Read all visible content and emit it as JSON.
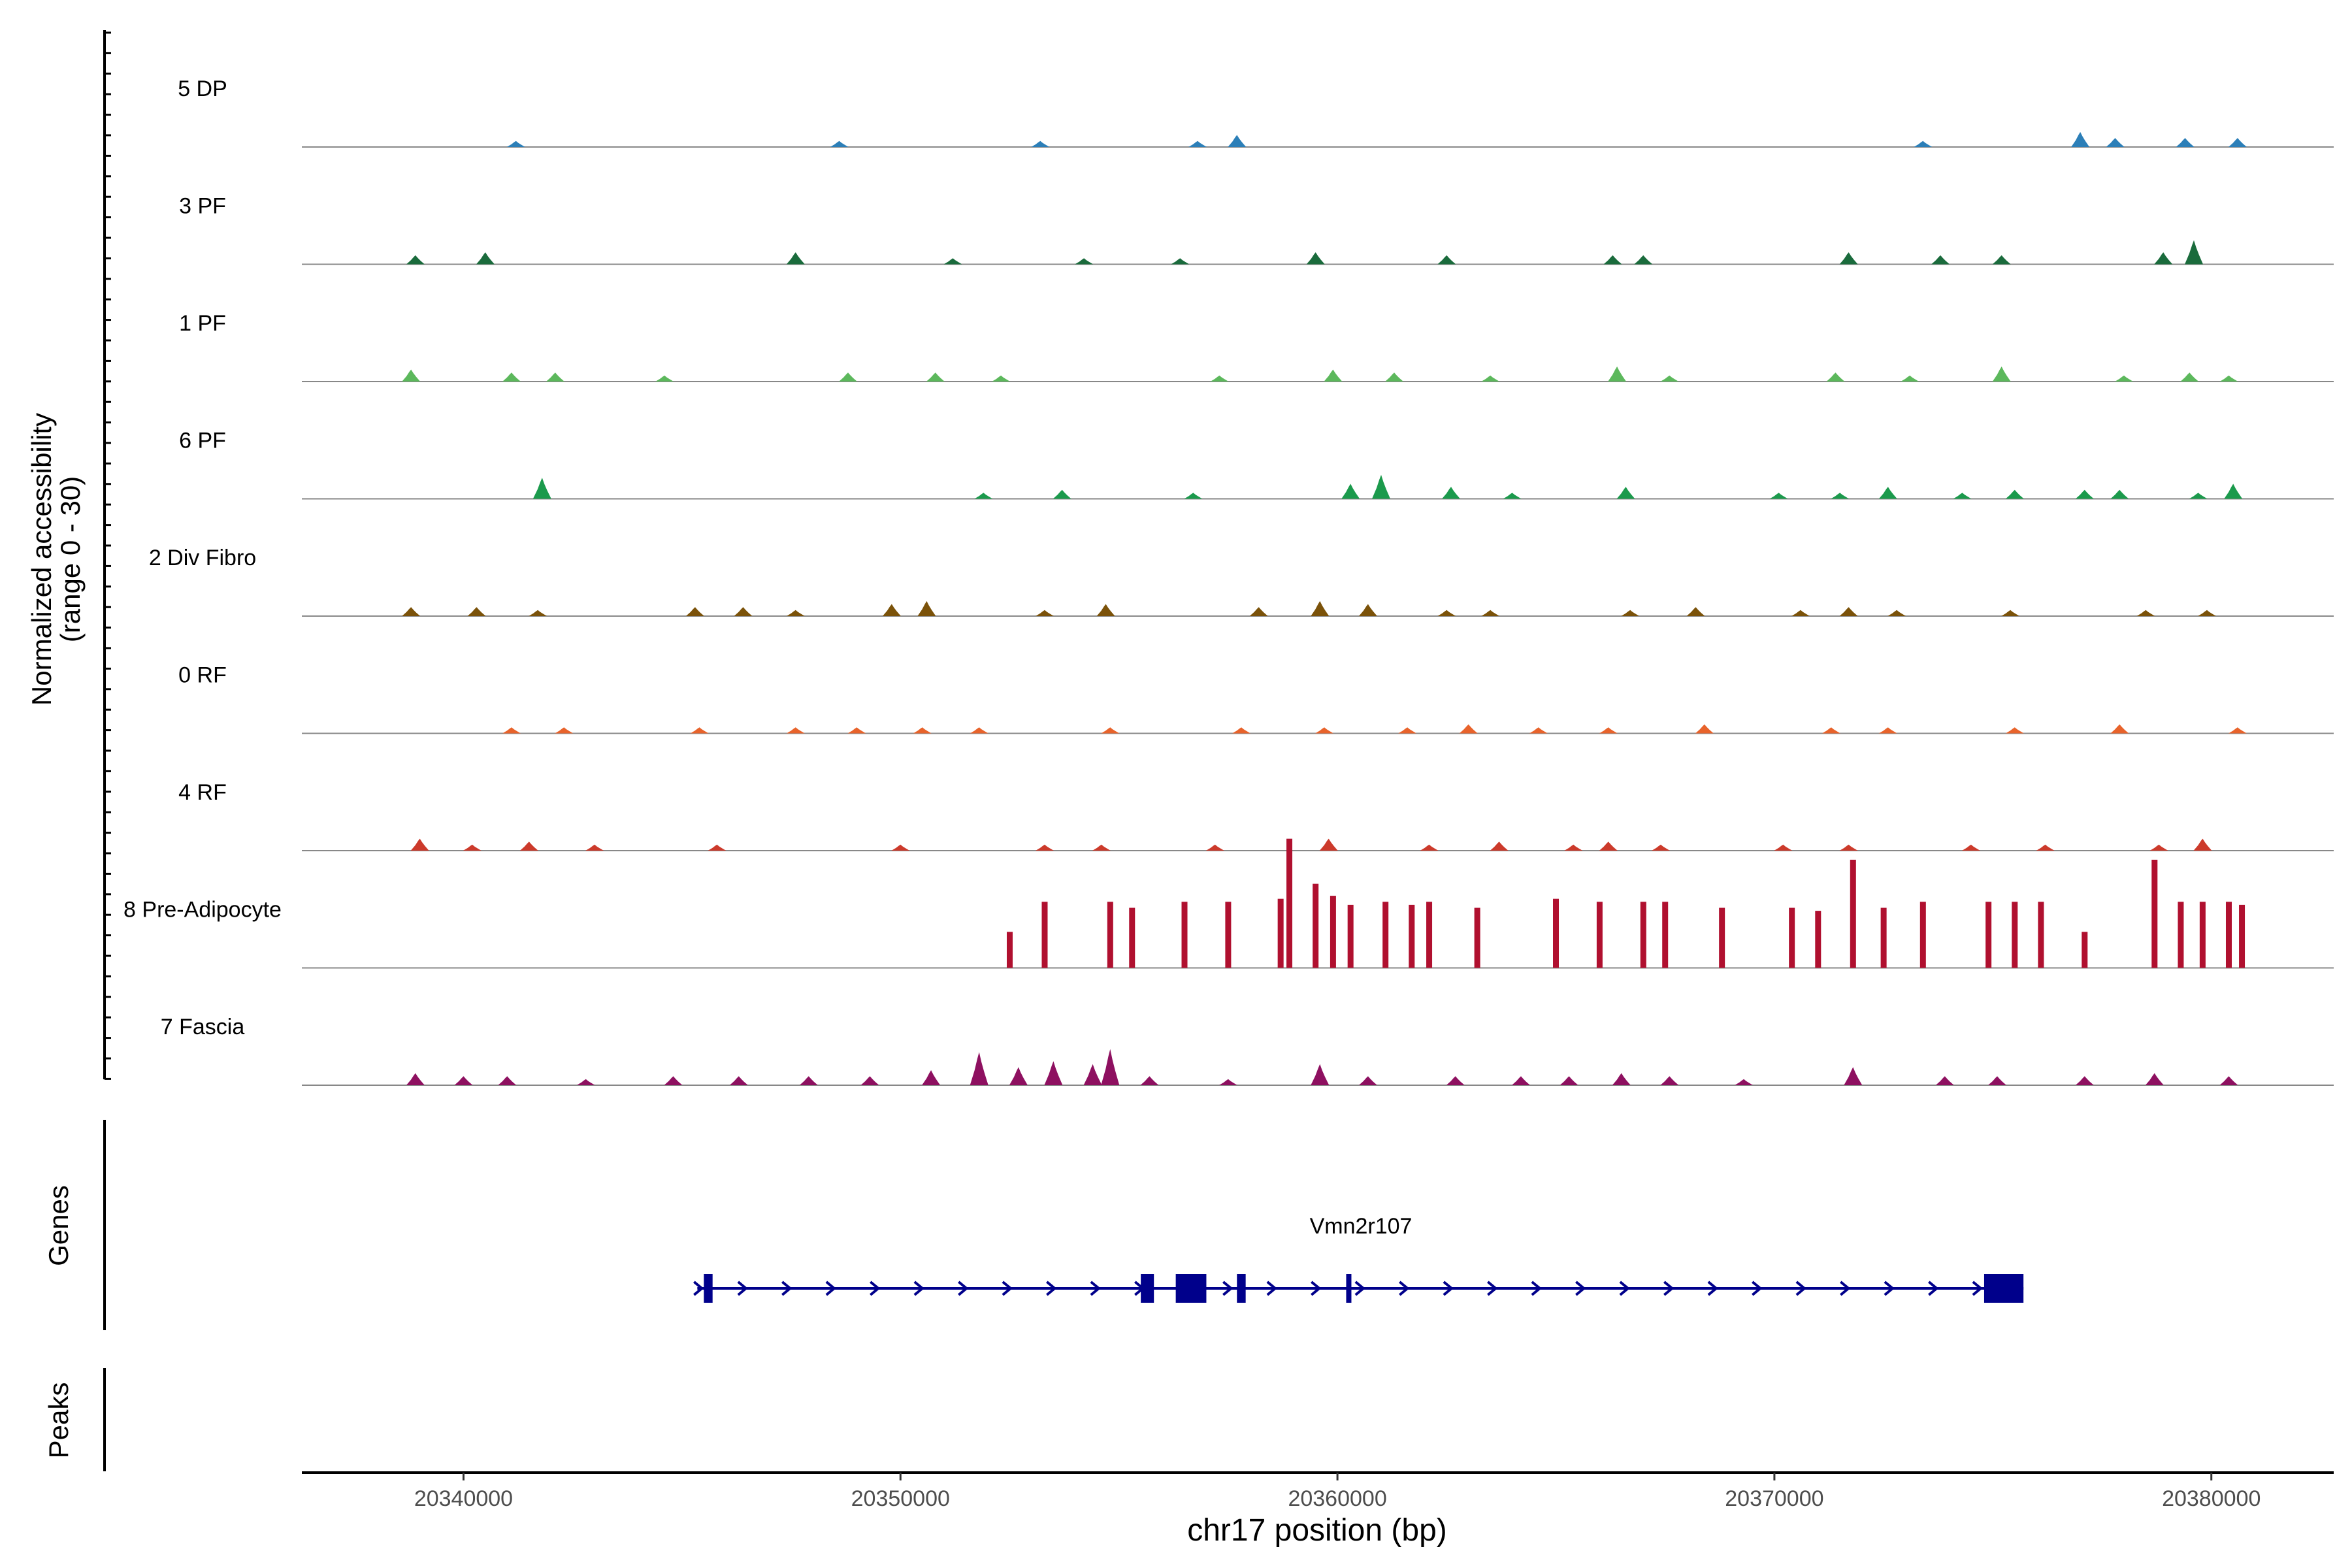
{
  "chart_data": {
    "type": "area",
    "title": "",
    "ylabel_line1": "Normalized accessibility",
    "ylabel_line2": "(range 0 - 30)",
    "xlabel": "chr17 position (bp)",
    "xlim": [
      20336300,
      20382800
    ],
    "ylim": [
      0,
      30
    ],
    "x_ticks": [
      20340000,
      20350000,
      20360000,
      20370000,
      20380000
    ],
    "x_tick_labels": [
      "20340000",
      "20350000",
      "20360000",
      "20370000",
      "20380000"
    ],
    "series": [
      {
        "name": "5 DP",
        "color": "#2c7fb8",
        "peaks": [
          [
            20341200,
            2
          ],
          [
            20348600,
            2
          ],
          [
            20353200,
            2
          ],
          [
            20356800,
            2
          ],
          [
            20357700,
            4
          ],
          [
            20373400,
            2
          ],
          [
            20377000,
            5
          ],
          [
            20377800,
            3
          ],
          [
            20379400,
            3
          ],
          [
            20380600,
            3
          ]
        ]
      },
      {
        "name": "3 PF",
        "color": "#1a6b3c",
        "peaks": [
          [
            20338900,
            3
          ],
          [
            20340500,
            4
          ],
          [
            20347600,
            4
          ],
          [
            20351200,
            2
          ],
          [
            20354200,
            2
          ],
          [
            20356400,
            2
          ],
          [
            20359500,
            4
          ],
          [
            20362500,
            3
          ],
          [
            20366300,
            3
          ],
          [
            20367000,
            3
          ],
          [
            20371700,
            4
          ],
          [
            20373800,
            3
          ],
          [
            20375200,
            3
          ],
          [
            20378900,
            4
          ],
          [
            20379600,
            8
          ]
        ]
      },
      {
        "name": "1 PF",
        "color": "#5cb85c",
        "peaks": [
          [
            20338800,
            4
          ],
          [
            20341100,
            3
          ],
          [
            20342100,
            3
          ],
          [
            20344600,
            2
          ],
          [
            20348800,
            3
          ],
          [
            20350800,
            3
          ],
          [
            20352300,
            2
          ],
          [
            20357300,
            2
          ],
          [
            20359900,
            4
          ],
          [
            20361300,
            3
          ],
          [
            20363500,
            2
          ],
          [
            20366400,
            5
          ],
          [
            20367600,
            2
          ],
          [
            20371400,
            3
          ],
          [
            20373100,
            2
          ],
          [
            20375200,
            5
          ],
          [
            20378000,
            2
          ],
          [
            20379500,
            3
          ],
          [
            20380400,
            2
          ]
        ]
      },
      {
        "name": "6 PF",
        "color": "#1b9a4c",
        "peaks": [
          [
            20341800,
            7
          ],
          [
            20351900,
            2
          ],
          [
            20353700,
            3
          ],
          [
            20356700,
            2
          ],
          [
            20360300,
            5
          ],
          [
            20361000,
            8
          ],
          [
            20362600,
            4
          ],
          [
            20364000,
            2
          ],
          [
            20366600,
            4
          ],
          [
            20370100,
            2
          ],
          [
            20371500,
            2
          ],
          [
            20372600,
            4
          ],
          [
            20374300,
            2
          ],
          [
            20375500,
            3
          ],
          [
            20377100,
            3
          ],
          [
            20377900,
            3
          ],
          [
            20379700,
            2
          ],
          [
            20380500,
            5
          ]
        ]
      },
      {
        "name": "2 Div Fibro",
        "color": "#7b5209",
        "peaks": [
          [
            20338800,
            3
          ],
          [
            20340300,
            3
          ],
          [
            20341700,
            2
          ],
          [
            20345300,
            3
          ],
          [
            20346400,
            3
          ],
          [
            20347600,
            2
          ],
          [
            20349800,
            4
          ],
          [
            20350600,
            5
          ],
          [
            20353300,
            2
          ],
          [
            20354700,
            4
          ],
          [
            20358200,
            3
          ],
          [
            20359600,
            5
          ],
          [
            20360700,
            4
          ],
          [
            20362500,
            2
          ],
          [
            20363500,
            2
          ],
          [
            20366700,
            2
          ],
          [
            20368200,
            3
          ],
          [
            20370600,
            2
          ],
          [
            20371700,
            3
          ],
          [
            20372800,
            2
          ],
          [
            20375400,
            2
          ],
          [
            20378500,
            2
          ],
          [
            20379900,
            2
          ]
        ]
      },
      {
        "name": "0 RF",
        "color": "#e8632b",
        "peaks": [
          [
            20341100,
            2
          ],
          [
            20342300,
            2
          ],
          [
            20345400,
            2
          ],
          [
            20347600,
            2
          ],
          [
            20349000,
            2
          ],
          [
            20350500,
            2
          ],
          [
            20351800,
            2
          ],
          [
            20354800,
            2
          ],
          [
            20357800,
            2
          ],
          [
            20359700,
            2
          ],
          [
            20361600,
            2
          ],
          [
            20363000,
            3
          ],
          [
            20364600,
            2
          ],
          [
            20366200,
            2
          ],
          [
            20368400,
            3
          ],
          [
            20371300,
            2
          ],
          [
            20372600,
            2
          ],
          [
            20375500,
            2
          ],
          [
            20377900,
            3
          ],
          [
            20380600,
            2
          ]
        ]
      },
      {
        "name": "4 RF",
        "color": "#cc3a2b",
        "peaks": [
          [
            20339000,
            4
          ],
          [
            20340200,
            2
          ],
          [
            20341500,
            3
          ],
          [
            20343000,
            2
          ],
          [
            20345800,
            2
          ],
          [
            20350000,
            2
          ],
          [
            20353300,
            2
          ],
          [
            20354600,
            2
          ],
          [
            20357200,
            2
          ],
          [
            20359800,
            4
          ],
          [
            20362100,
            2
          ],
          [
            20363700,
            3
          ],
          [
            20365400,
            2
          ],
          [
            20366200,
            3
          ],
          [
            20367400,
            2
          ],
          [
            20370200,
            2
          ],
          [
            20371700,
            2
          ],
          [
            20374500,
            2
          ],
          [
            20376200,
            2
          ],
          [
            20378800,
            2
          ],
          [
            20379800,
            4
          ]
        ]
      },
      {
        "name": "8 Pre-Adipocyte",
        "color": "#b0102f",
        "peaks": [
          [
            20352500,
            12
          ],
          [
            20353300,
            22
          ],
          [
            20354800,
            22
          ],
          [
            20355300,
            20
          ],
          [
            20356500,
            22
          ],
          [
            20357500,
            22
          ],
          [
            20358700,
            23
          ],
          [
            20358900,
            43
          ],
          [
            20359500,
            28
          ],
          [
            20359900,
            24
          ],
          [
            20360300,
            21
          ],
          [
            20361100,
            22
          ],
          [
            20361700,
            21
          ],
          [
            20362100,
            22
          ],
          [
            20363200,
            20
          ],
          [
            20365000,
            23
          ],
          [
            20366000,
            22
          ],
          [
            20367000,
            22
          ],
          [
            20367500,
            22
          ],
          [
            20368800,
            20
          ],
          [
            20370400,
            20
          ],
          [
            20371000,
            19
          ],
          [
            20371800,
            36
          ],
          [
            20372500,
            20
          ],
          [
            20373400,
            22
          ],
          [
            20374900,
            22
          ],
          [
            20375500,
            22
          ],
          [
            20376100,
            22
          ],
          [
            20377100,
            12
          ],
          [
            20378700,
            36
          ],
          [
            20379300,
            22
          ],
          [
            20379800,
            22
          ],
          [
            20380400,
            22
          ],
          [
            20380700,
            21
          ]
        ]
      },
      {
        "name": "7 Fascia",
        "color": "#8e1060",
        "peaks": [
          [
            20338900,
            4
          ],
          [
            20340000,
            3
          ],
          [
            20341000,
            3
          ],
          [
            20342800,
            2
          ],
          [
            20344800,
            3
          ],
          [
            20346300,
            3
          ],
          [
            20347900,
            3
          ],
          [
            20349300,
            3
          ],
          [
            20350700,
            5
          ],
          [
            20351800,
            11
          ],
          [
            20352700,
            6
          ],
          [
            20353500,
            8
          ],
          [
            20354400,
            7
          ],
          [
            20354800,
            12
          ],
          [
            20355700,
            3
          ],
          [
            20357500,
            2
          ],
          [
            20359600,
            7
          ],
          [
            20360700,
            3
          ],
          [
            20362700,
            3
          ],
          [
            20364200,
            3
          ],
          [
            20365300,
            3
          ],
          [
            20366500,
            4
          ],
          [
            20367600,
            3
          ],
          [
            20369300,
            2
          ],
          [
            20371800,
            6
          ],
          [
            20373900,
            3
          ],
          [
            20375100,
            3
          ],
          [
            20377100,
            3
          ],
          [
            20378700,
            4
          ],
          [
            20380400,
            3
          ]
        ]
      }
    ],
    "genes": [
      {
        "name": "Vmn2r107",
        "start": 20345500,
        "end": 20375700,
        "strand": "+",
        "color": "#00008b",
        "exons": [
          [
            20345500,
            20345700
          ],
          [
            20355500,
            20355800
          ],
          [
            20356300,
            20357000
          ],
          [
            20357700,
            20357900
          ],
          [
            20360200,
            20360300
          ],
          [
            20374800,
            20375700
          ]
        ]
      }
    ],
    "genes_label": "Genes",
    "peaks_label": "Peaks"
  }
}
